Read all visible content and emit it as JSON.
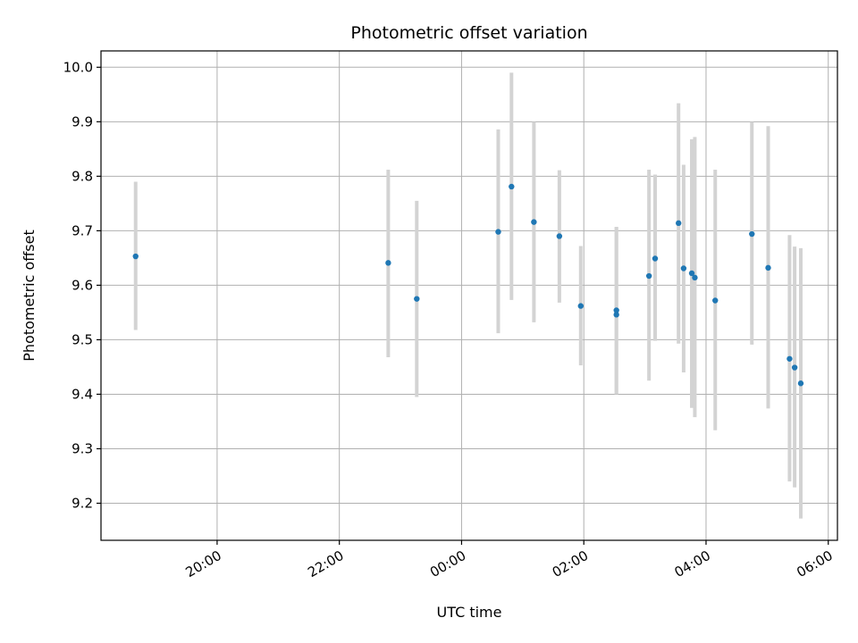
{
  "chart_data": {
    "type": "scatter",
    "title": "Photometric offset variation",
    "xlabel": "UTC time",
    "ylabel": "Photometric offset",
    "x_is_time": true,
    "x_tick_labels": [
      "20:00",
      "22:00",
      "00:00",
      "02:00",
      "04:00",
      "06:00"
    ],
    "y_tick_labels": [
      "9.2",
      "9.3",
      "9.4",
      "9.5",
      "9.6",
      "9.7",
      "9.8",
      "9.9",
      "10.0"
    ],
    "xlim": [
      "18:06",
      "06:09"
    ],
    "ylim": [
      9.132,
      10.03
    ],
    "grid": true,
    "legend": "none",
    "point_color": "#1f77b4",
    "errorbar_color": "#d3d3d3",
    "points": [
      {
        "time": "18:40",
        "y": 9.653,
        "yerr_low": 9.518,
        "yerr_high": 9.79
      },
      {
        "time": "22:48",
        "y": 9.641,
        "yerr_low": 9.468,
        "yerr_high": 9.812
      },
      {
        "time": "23:16",
        "y": 9.575,
        "yerr_low": 9.395,
        "yerr_high": 9.755
      },
      {
        "time": "00:36",
        "y": 9.698,
        "yerr_low": 9.512,
        "yerr_high": 9.886
      },
      {
        "time": "00:49",
        "y": 9.781,
        "yerr_low": 9.573,
        "yerr_high": 9.99
      },
      {
        "time": "01:11",
        "y": 9.716,
        "yerr_low": 9.532,
        "yerr_high": 9.9
      },
      {
        "time": "01:36",
        "y": 9.69,
        "yerr_low": 9.568,
        "yerr_high": 9.811
      },
      {
        "time": "01:57",
        "y": 9.562,
        "yerr_low": 9.453,
        "yerr_high": 9.672
      },
      {
        "time": "02:32",
        "y": 9.554,
        "yerr_low": 9.4,
        "yerr_high": 9.707
      },
      {
        "time": "02:32",
        "y": 9.546,
        "yerr_low": 9.4,
        "yerr_high": 9.707
      },
      {
        "time": "03:04",
        "y": 9.617,
        "yerr_low": 9.425,
        "yerr_high": 9.812
      },
      {
        "time": "03:10",
        "y": 9.649,
        "yerr_low": 9.498,
        "yerr_high": 9.803
      },
      {
        "time": "03:33",
        "y": 9.714,
        "yerr_low": 9.493,
        "yerr_high": 9.934
      },
      {
        "time": "03:38",
        "y": 9.631,
        "yerr_low": 9.44,
        "yerr_high": 9.821
      },
      {
        "time": "03:46",
        "y": 9.622,
        "yerr_low": 9.375,
        "yerr_high": 9.868
      },
      {
        "time": "03:49",
        "y": 9.614,
        "yerr_low": 9.358,
        "yerr_high": 9.872
      },
      {
        "time": "04:09",
        "y": 9.572,
        "yerr_low": 9.334,
        "yerr_high": 9.812
      },
      {
        "time": "04:45",
        "y": 9.694,
        "yerr_low": 9.491,
        "yerr_high": 9.9
      },
      {
        "time": "05:01",
        "y": 9.632,
        "yerr_low": 9.374,
        "yerr_high": 9.892
      },
      {
        "time": "05:22",
        "y": 9.465,
        "yerr_low": 9.24,
        "yerr_high": 9.692
      },
      {
        "time": "05:27",
        "y": 9.449,
        "yerr_low": 9.229,
        "yerr_high": 9.671
      },
      {
        "time": "05:33",
        "y": 9.42,
        "yerr_low": 9.172,
        "yerr_high": 9.668
      }
    ]
  }
}
